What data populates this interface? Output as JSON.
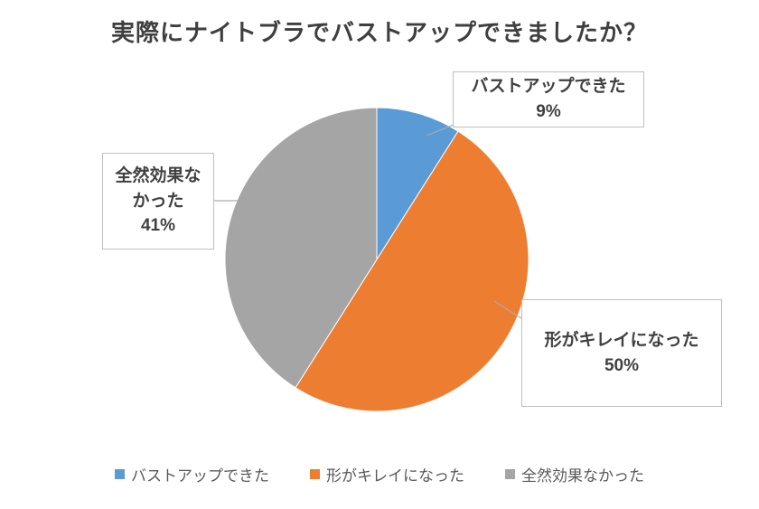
{
  "title": "実際にナイトブラでバストアップできましたか？",
  "chart_data": {
    "type": "pie",
    "title": "実際にナイトブラでバストアップできましたか？",
    "start_angle_deg": 0,
    "direction": "clockwise",
    "legend_position": "bottom",
    "grid": false,
    "slices": [
      {
        "id": "bust-up",
        "name": "バストアップできた",
        "value": 9,
        "percent_label": "9%",
        "color": "#5B9BD5"
      },
      {
        "id": "shape-improved",
        "name": "形がキレイになった",
        "value": 50,
        "percent_label": "50%",
        "color": "#ED7D31"
      },
      {
        "id": "no-effect",
        "name": "全然効果なかった",
        "value": 41,
        "percent_label": "41%",
        "color": "#A5A5A5"
      }
    ]
  }
}
